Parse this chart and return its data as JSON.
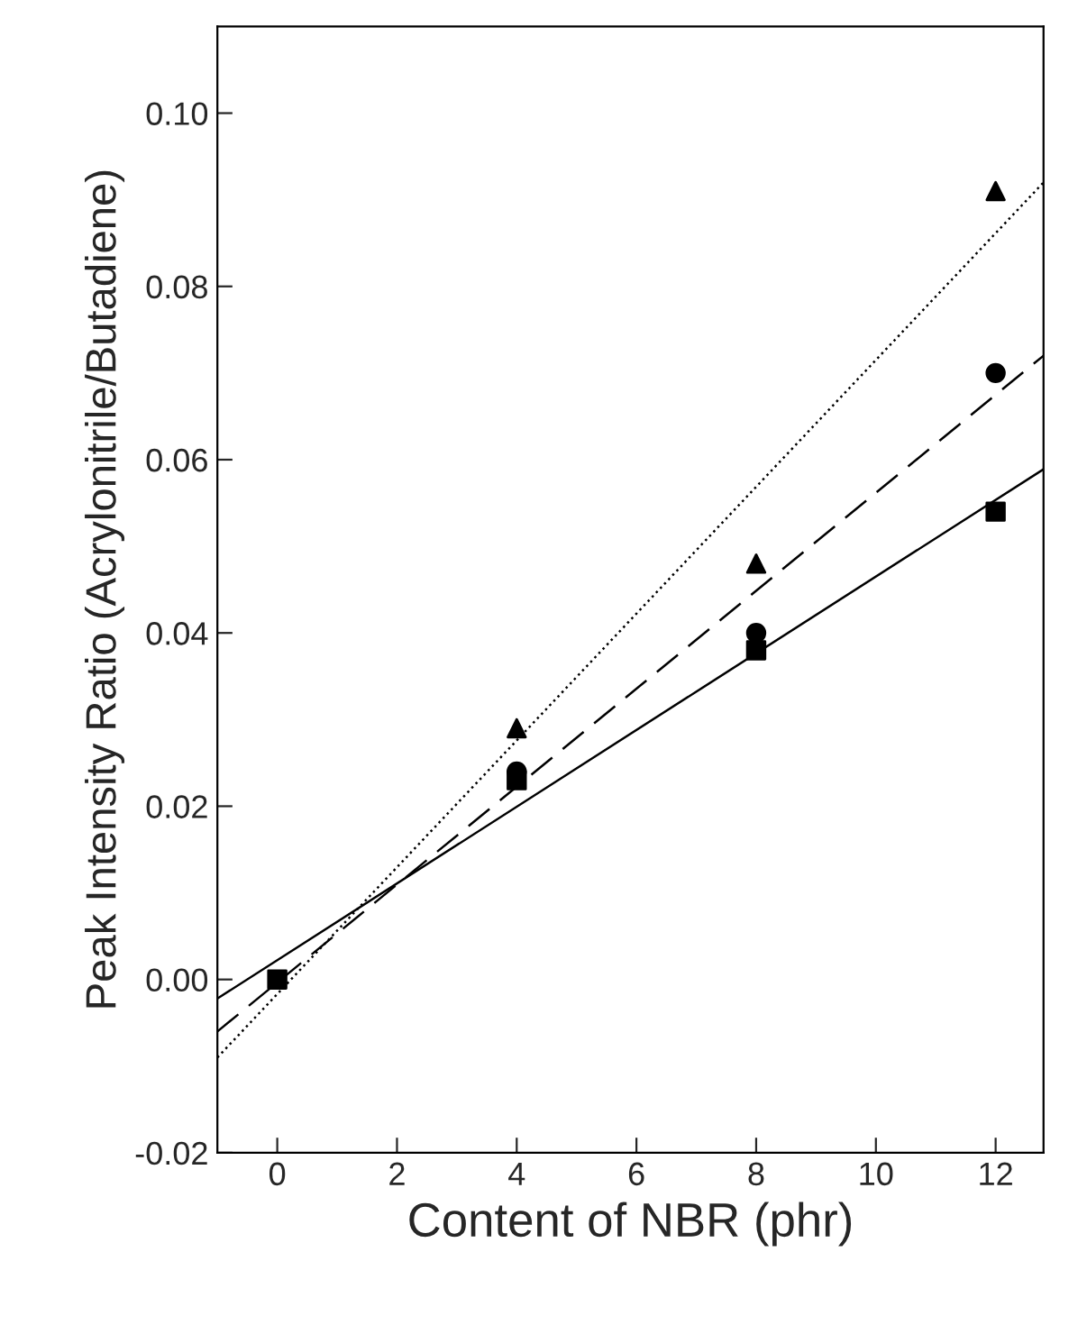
{
  "chart_data": {
    "type": "scatter",
    "xlabel": "Content of NBR (phr)",
    "ylabel": "Peak Intensity Ratio (Acrylonitrile/Butadiene)",
    "xlim": [
      -1,
      12.8
    ],
    "xticks": [
      0,
      2,
      4,
      6,
      8,
      10,
      12
    ],
    "ylim": [
      -0.02,
      0.11
    ],
    "yticks": [
      {
        "value": -0.02,
        "label": "-0.02"
      },
      {
        "value": 0,
        "label": "0.00"
      },
      {
        "value": 0.02,
        "label": "0.02"
      },
      {
        "value": 0.04,
        "label": "0.04"
      },
      {
        "value": 0.06,
        "label": "0.06"
      },
      {
        "value": 0.08,
        "label": "0.08"
      },
      {
        "value": 0.1,
        "label": "0.10"
      }
    ],
    "grid": false,
    "legend": false,
    "series": [
      {
        "marker": "square",
        "color": "#000000",
        "x": [
          0,
          4,
          8,
          12
        ],
        "values": [
          0,
          0.023,
          0.038,
          0.054
        ]
      },
      {
        "marker": "circle",
        "color": "#000000",
        "x": [
          4,
          8,
          12
        ],
        "values": [
          0.024,
          0.04,
          0.07
        ]
      },
      {
        "marker": "triangle",
        "color": "#000000",
        "x": [
          4,
          8,
          12
        ],
        "values": [
          0.029,
          0.048,
          0.091
        ]
      },
      {
        "type": "line",
        "line_style": "solid",
        "color": "#000000",
        "x": [
          -1,
          12.8
        ],
        "values": [
          -0.0022,
          0.0589
        ]
      },
      {
        "type": "line",
        "line_style": "dashed",
        "color": "#000000",
        "x": [
          -1,
          12.8
        ],
        "values": [
          -0.006,
          0.072
        ]
      },
      {
        "type": "line",
        "line_style": "dotted",
        "color": "#000000",
        "x": [
          -1,
          12.8
        ],
        "values": [
          -0.009,
          0.092
        ]
      }
    ]
  }
}
